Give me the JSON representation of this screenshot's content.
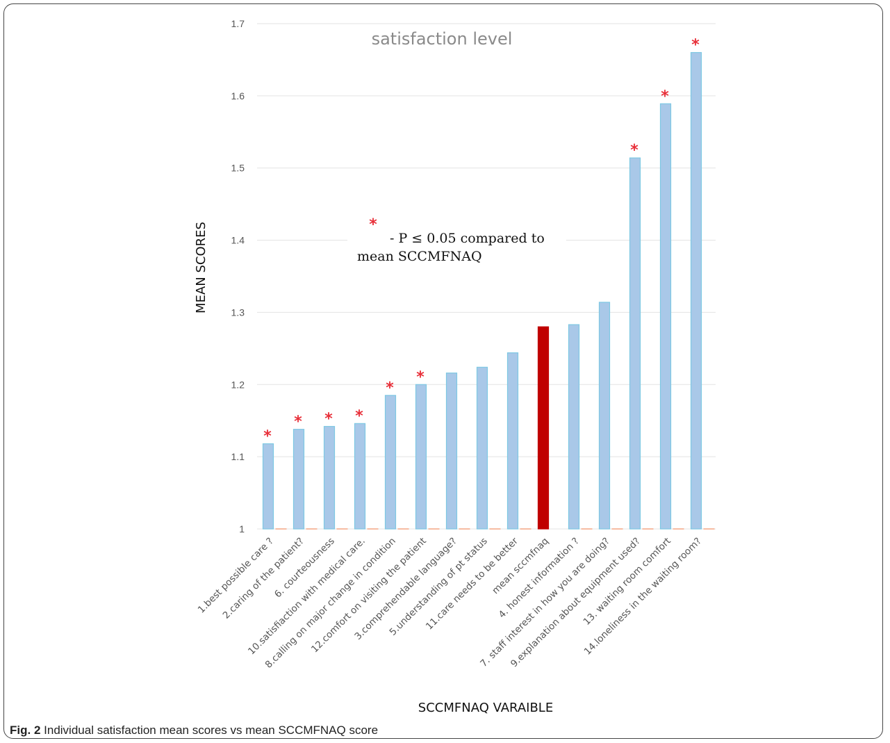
{
  "caption": {
    "label": "Fig. 2",
    "text": "Individual satisfaction mean scores vs mean SCCMFNAQ score"
  },
  "note": {
    "line1": "- P ≤ 0.05 compared to",
    "line2": "mean SCCMFNAQ",
    "marker": "*"
  },
  "colors": {
    "bar": "#a9c8e8",
    "bar_edge": "#7ec8e3",
    "highlight": "#c00000",
    "star": "#e8303a",
    "zero_stub": "#f4a582"
  },
  "chart_data": {
    "type": "bar",
    "title": "satisfaction level",
    "xlabel": "SCCMFNAQ VARAIBLE",
    "ylabel": "MEAN SCORES",
    "ylim": [
      1,
      1.7
    ],
    "yticks": [
      "1",
      "1.1",
      "1.2",
      "1.3",
      "1.4",
      "1.5",
      "1.6",
      "1.7"
    ],
    "grid": true,
    "categories": [
      "1.best possible care ?",
      "2.caring of the patient?",
      "6. courteousness",
      "10.satisfiaction with medical care.",
      "8.calling on major change in condition",
      "12.comfort on visiting the patient",
      "3.comprehendable language?",
      "5.understanding of pt status",
      "11.care needs to be better",
      "mean sccmfnaq",
      "4. honest information ?",
      "7. staff interest in how you are doing?",
      "9.explanation about equipment used?",
      "13. waiting room comfort",
      "14.loneliness in the waiting room?"
    ],
    "values": [
      1.118,
      1.138,
      1.142,
      1.146,
      1.185,
      1.2,
      1.216,
      1.224,
      1.244,
      1.28,
      1.283,
      1.314,
      1.514,
      1.589,
      1.66
    ],
    "significant": [
      true,
      true,
      true,
      true,
      true,
      true,
      false,
      false,
      false,
      false,
      false,
      false,
      true,
      true,
      true
    ],
    "highlight_index": 9
  }
}
